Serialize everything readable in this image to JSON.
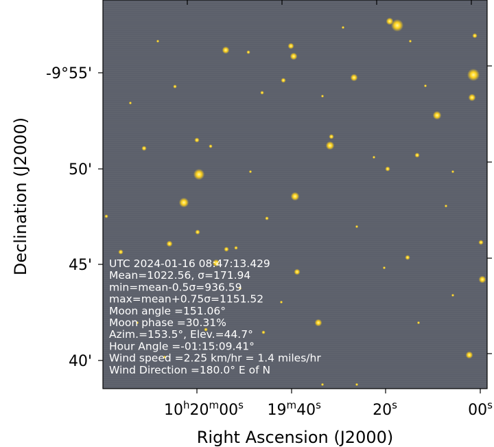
{
  "axes": {
    "xlabel": "Right Ascension (J2000)",
    "ylabel": "Declination (J2000)",
    "x_ticks": [
      {
        "parts": [
          [
            "10",
            "n"
          ],
          [
            "h",
            "s"
          ],
          [
            "20",
            "n"
          ],
          [
            "m",
            "s"
          ],
          [
            "00",
            "n"
          ],
          [
            "s",
            "s"
          ]
        ]
      },
      {
        "parts": [
          [
            "19",
            "n"
          ],
          [
            "m",
            "s"
          ],
          [
            "40",
            "n"
          ],
          [
            "s",
            "s"
          ]
        ]
      },
      {
        "parts": [
          [
            "20",
            "n"
          ],
          [
            "s",
            "s"
          ]
        ]
      },
      {
        "parts": [
          [
            "00",
            "n"
          ],
          [
            "s",
            "s"
          ]
        ]
      }
    ],
    "y_ticks": [
      "-9°55'",
      "50'",
      "45'",
      "40'"
    ]
  },
  "info_lines": [
    "UTC  2024-01-16  08:47:13.429",
    "Mean=1022.56,  σ=171.94",
    "min=mean-0.5σ=936.59",
    "max=mean+0.75σ=1151.52",
    "Moon angle =151.06°",
    "Moon phase =30.31%",
    "Azim.=153.5°, Elev.=44.7°",
    "Hour Angle =-01:15:09.41°",
    "Wind speed =2.25 km/hr = 1.4 miles/hr",
    "Wind Direction =180.0° E of N"
  ],
  "colors": {
    "sky_background": "#5c606b",
    "star": "#ffd21a",
    "star_core": "#fff6a0",
    "info_text": "#ffffff"
  }
}
